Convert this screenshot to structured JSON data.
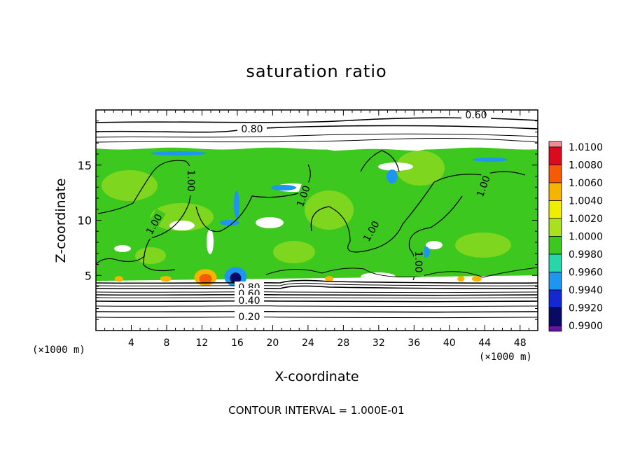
{
  "chart_data": {
    "type": "heatmap",
    "title": "saturation ratio",
    "xlabel": "X-coordinate",
    "ylabel": "Z-coordinate",
    "x_unit": "(×1000 m)",
    "xlim": [
      0,
      50
    ],
    "ylim": [
      0,
      20
    ],
    "x_ticks": [
      4,
      8,
      12,
      16,
      20,
      24,
      28,
      32,
      36,
      40,
      44,
      48
    ],
    "y_ticks": [
      5,
      10,
      15
    ],
    "grid": false,
    "legend": "right",
    "colorbar": {
      "levels": [
        "1.0100",
        "1.0080",
        "1.0060",
        "1.0040",
        "1.0020",
        "1.0000",
        "0.9980",
        "0.9960",
        "0.9940",
        "0.9920",
        "0.9900"
      ],
      "colors": [
        "#f08c96",
        "#dc0a1e",
        "#f55a05",
        "#f5b400",
        "#f0ee00",
        "#aae11e",
        "#3cc81e",
        "#28d6aa",
        "#1e96f0",
        "#1428d2",
        "#0a0a64",
        "#6414a0"
      ]
    },
    "contour_labels": [
      {
        "text": "0.60"
      },
      {
        "text": "0.80"
      },
      {
        "text": "1.00"
      },
      {
        "text": "1.00"
      },
      {
        "text": "1.00"
      },
      {
        "text": "1.00"
      },
      {
        "text": "1.00"
      },
      {
        "text": "1.00"
      },
      {
        "text": "0.80"
      },
      {
        "text": "0.60"
      },
      {
        "text": "0.40"
      },
      {
        "text": "0.20"
      }
    ],
    "contour_interval": "CONTOUR INTERVAL = 1.000E-01",
    "field_extent_z": [
      4.5,
      16.5
    ],
    "dominant_value": 1.0
  }
}
